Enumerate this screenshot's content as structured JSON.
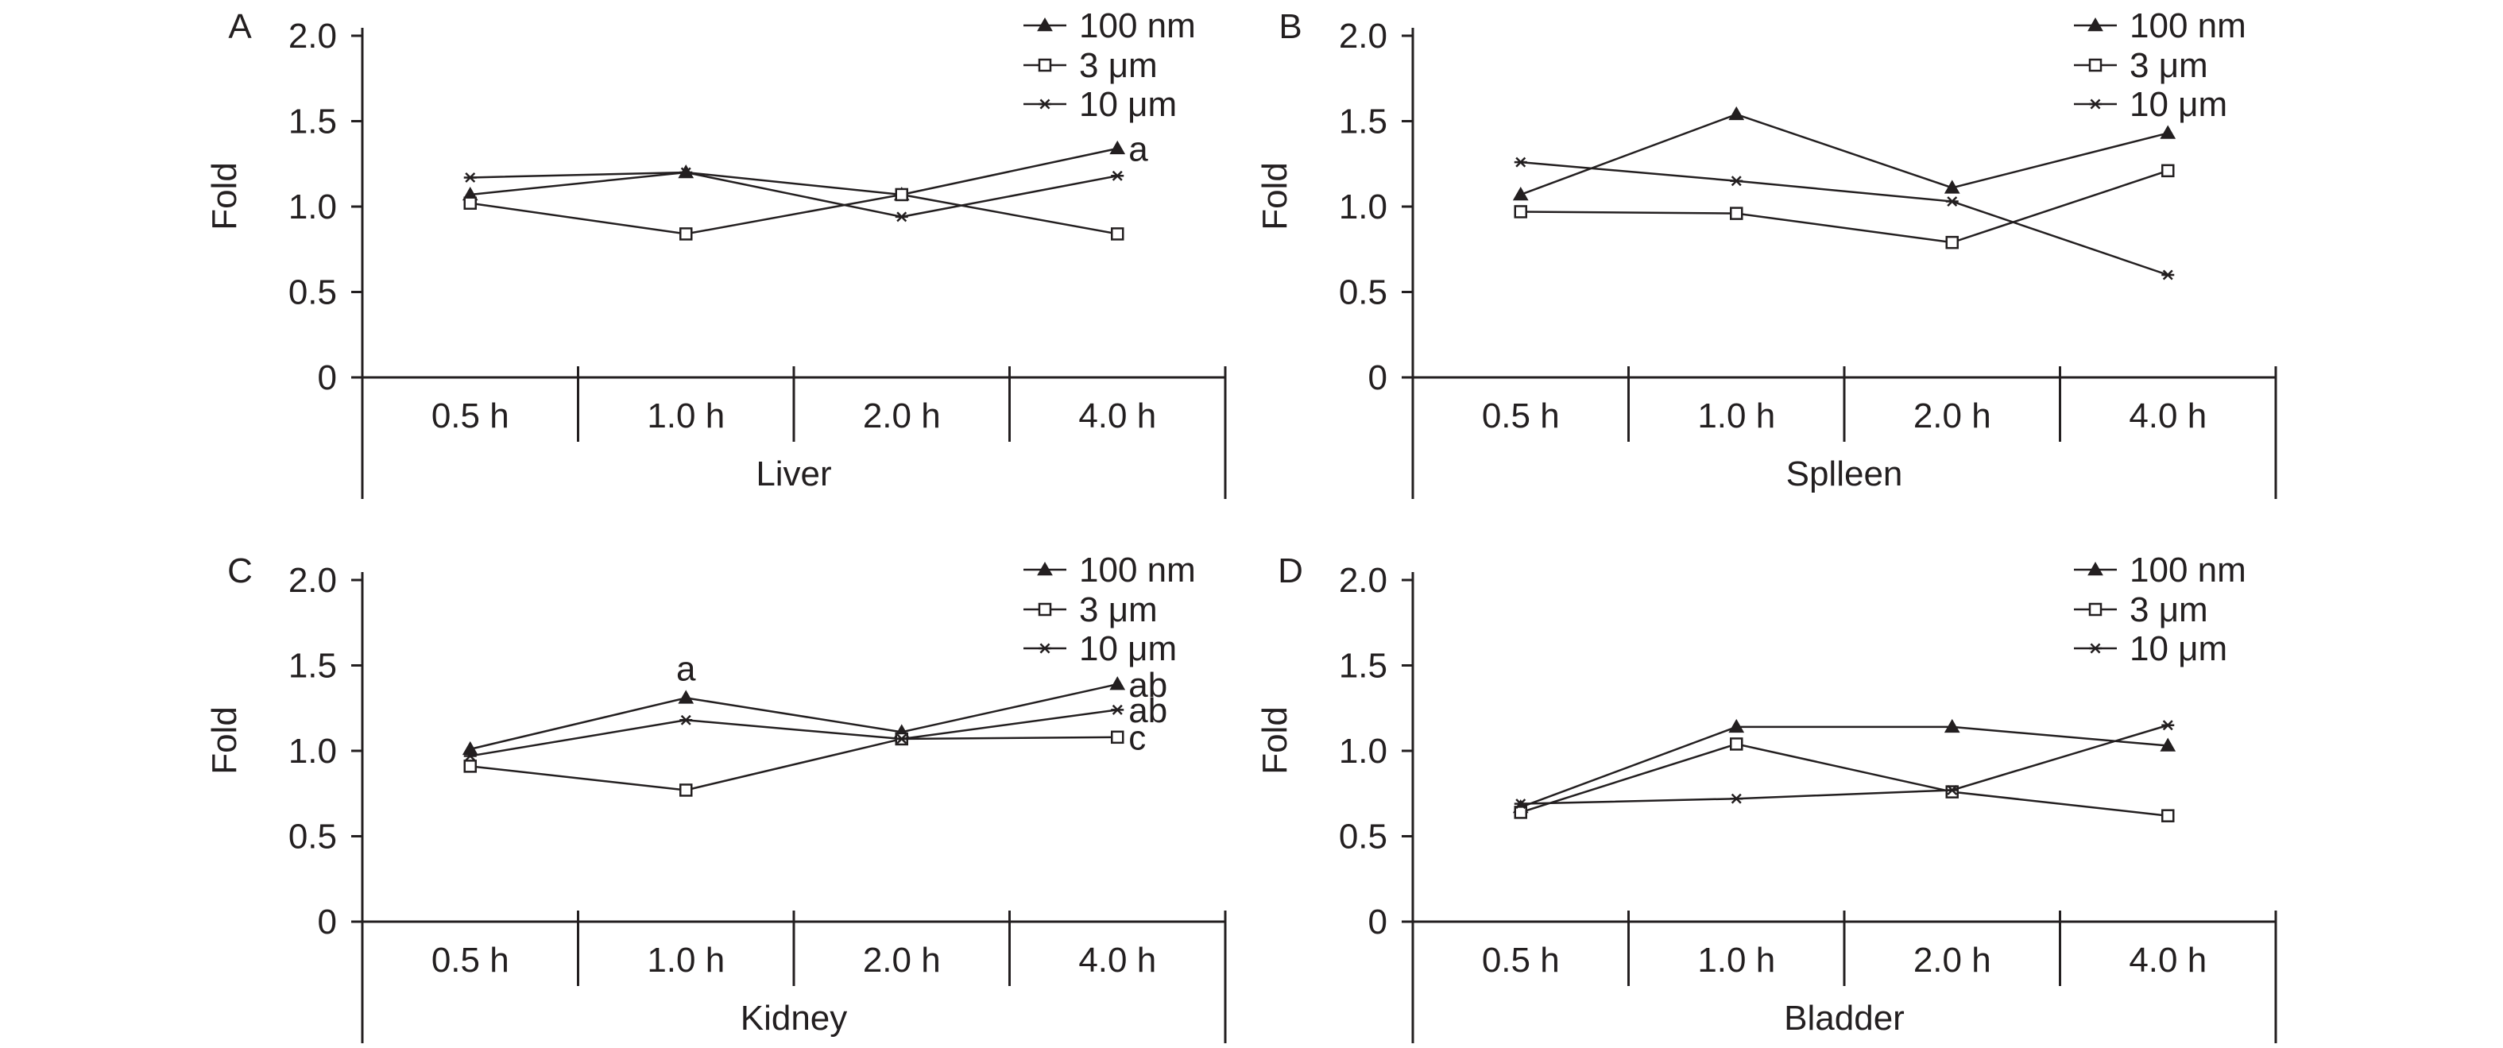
{
  "chart_data": [
    {
      "type": "line",
      "panel_label": "A",
      "group_label": "Liver",
      "ylabel": "Fold",
      "ylim": [
        0,
        2.0
      ],
      "yticks": [
        "0",
        "0.5",
        "1.0",
        "1.5",
        "2.0"
      ],
      "categories": [
        "0.5 h",
        "1.0 h",
        "2.0 h",
        "4.0 h"
      ],
      "legend_position": "top-right",
      "series": [
        {
          "name": "100 nm",
          "marker": "triangle",
          "values": [
            1.07,
            1.2,
            1.07,
            1.34
          ]
        },
        {
          "name": "3 μm",
          "marker": "square",
          "values": [
            1.02,
            0.84,
            1.07,
            0.84
          ]
        },
        {
          "name": "10 μm",
          "marker": "asterisk",
          "values": [
            1.17,
            1.2,
            0.94,
            1.18
          ]
        }
      ],
      "annotations": [
        {
          "text": "a",
          "series": "100 nm",
          "category": "4.0 h"
        }
      ]
    },
    {
      "type": "line",
      "panel_label": "B",
      "group_label": "Splleen",
      "ylabel": "Fold",
      "ylim": [
        0,
        2.0
      ],
      "yticks": [
        "0",
        "0.5",
        "1.0",
        "1.5",
        "2.0"
      ],
      "categories": [
        "0.5 h",
        "1.0 h",
        "2.0 h",
        "4.0 h"
      ],
      "legend_position": "top-right",
      "series": [
        {
          "name": "100 nm",
          "marker": "triangle",
          "values": [
            1.07,
            1.54,
            1.11,
            1.43
          ]
        },
        {
          "name": "3 μm",
          "marker": "square",
          "values": [
            0.97,
            0.96,
            0.79,
            1.21
          ]
        },
        {
          "name": "10 μm",
          "marker": "asterisk",
          "values": [
            1.26,
            1.15,
            1.03,
            0.6
          ]
        }
      ],
      "annotations": []
    },
    {
      "type": "line",
      "panel_label": "C",
      "group_label": "Kidney",
      "ylabel": "Fold",
      "ylim": [
        0,
        2.0
      ],
      "yticks": [
        "0",
        "0.5",
        "1.0",
        "1.5",
        "2.0"
      ],
      "categories": [
        "0.5 h",
        "1.0 h",
        "2.0 h",
        "4.0 h"
      ],
      "legend_position": "top-right",
      "series": [
        {
          "name": "100 nm",
          "marker": "triangle",
          "values": [
            1.01,
            1.31,
            1.11,
            1.39
          ]
        },
        {
          "name": "3 μm",
          "marker": "square",
          "values": [
            0.91,
            0.77,
            1.07,
            1.08
          ]
        },
        {
          "name": "10 μm",
          "marker": "asterisk",
          "values": [
            0.97,
            1.18,
            1.07,
            1.24
          ]
        }
      ],
      "annotations": [
        {
          "text": "a",
          "series": "100 nm",
          "category": "1.0 h"
        },
        {
          "text": "ab",
          "series": "100 nm",
          "category": "4.0 h"
        },
        {
          "text": "ab",
          "series": "10 μm",
          "category": "4.0 h"
        },
        {
          "text": "c",
          "series": "3 μm",
          "category": "4.0 h"
        }
      ]
    },
    {
      "type": "line",
      "panel_label": "D",
      "group_label": "Bladder",
      "ylabel": "Fold",
      "ylim": [
        0,
        2.0
      ],
      "yticks": [
        "0",
        "0.5",
        "1.0",
        "1.5",
        "2.0"
      ],
      "categories": [
        "0.5 h",
        "1.0 h",
        "2.0 h",
        "4.0 h"
      ],
      "legend_position": "top-right",
      "series": [
        {
          "name": "100 nm",
          "marker": "triangle",
          "values": [
            0.67,
            1.14,
            1.14,
            1.03
          ]
        },
        {
          "name": "3 μm",
          "marker": "square",
          "values": [
            0.64,
            1.04,
            0.76,
            0.62
          ]
        },
        {
          "name": "10 μm",
          "marker": "asterisk",
          "values": [
            0.69,
            0.72,
            0.77,
            1.15
          ]
        }
      ],
      "annotations": []
    }
  ]
}
